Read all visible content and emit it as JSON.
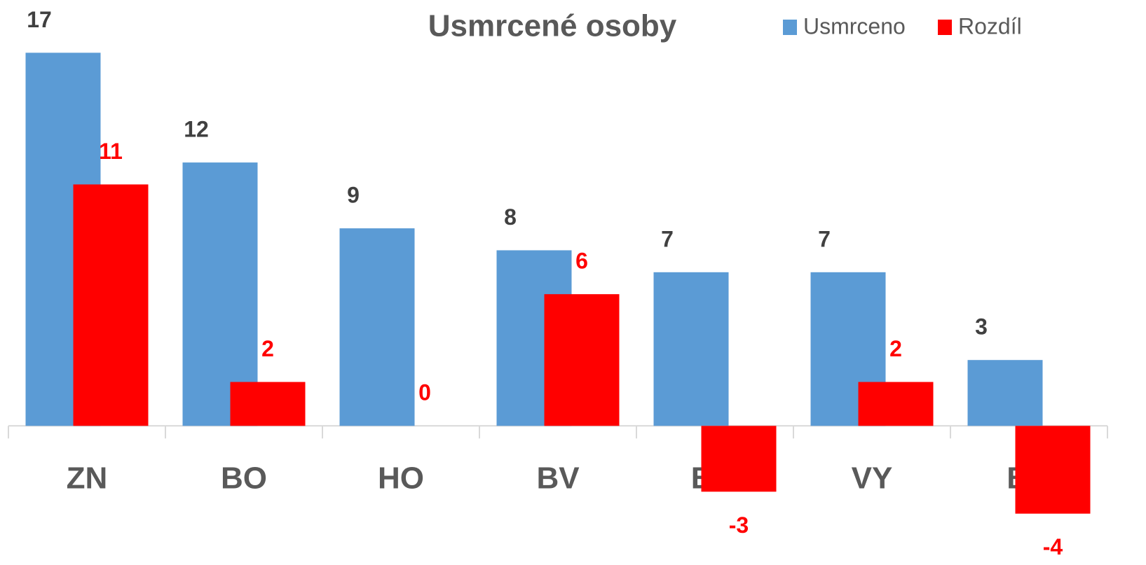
{
  "chart_data": {
    "type": "bar",
    "title": "Usmrcené osoby",
    "categories": [
      "ZN",
      "BO",
      "HO",
      "BV",
      "BM",
      "VY",
      "BK"
    ],
    "series": [
      {
        "name": "Usmrceno",
        "color": "#5b9bd5",
        "values": [
          17,
          12,
          9,
          8,
          7,
          7,
          3
        ]
      },
      {
        "name": "Rozdíl",
        "color": "#ff0000",
        "values": [
          11,
          2,
          0,
          6,
          -3,
          2,
          -4
        ]
      }
    ],
    "ylim": [
      -5,
      18
    ],
    "legend": "top-right"
  }
}
